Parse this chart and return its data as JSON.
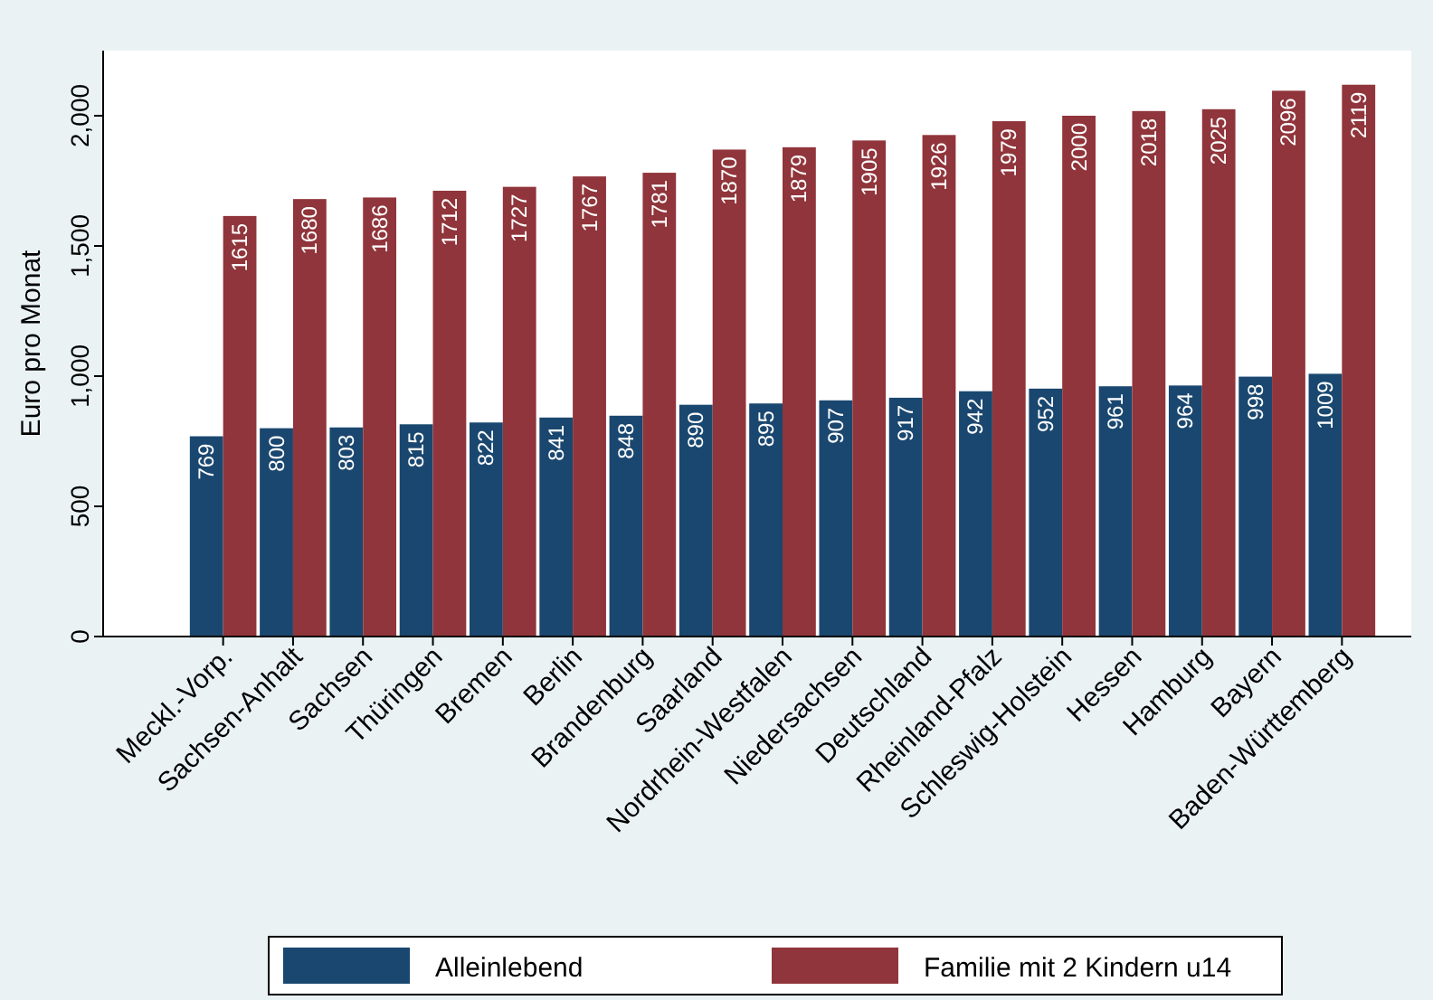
{
  "chart_data": {
    "type": "bar",
    "ylabel": "Euro pro Monat",
    "categories": [
      "Meckl.-Vorp.",
      "Sachsen-Anhalt",
      "Sachsen",
      "Thüringen",
      "Bremen",
      "Berlin",
      "Brandenburg",
      "Saarland",
      "Nordrhein-Westfalen",
      "Niedersachsen",
      "Deutschland",
      "Rheinland-Pfalz",
      "Schleswig-Holstein",
      "Hessen",
      "Hamburg",
      "Bayern",
      "Baden-Württemberg"
    ],
    "series": [
      {
        "name": "Alleinlebend",
        "color": "#1a476f",
        "values": [
          769,
          800,
          803,
          815,
          822,
          841,
          848,
          890,
          895,
          907,
          917,
          942,
          952,
          961,
          964,
          998,
          1009
        ]
      },
      {
        "name": "Familie mit 2 Kindern u14",
        "color": "#90353b",
        "values": [
          1615,
          1680,
          1686,
          1712,
          1727,
          1767,
          1781,
          1870,
          1879,
          1905,
          1926,
          1979,
          2000,
          2018,
          2025,
          2096,
          2119
        ]
      }
    ],
    "ylim": [
      0,
      2250
    ],
    "yticks": [
      0,
      500,
      {
        "value": 1000,
        "label": "1,000"
      },
      {
        "value": 1500,
        "label": "1,500"
      },
      {
        "value": 2000,
        "label": "2,000"
      }
    ],
    "data_labels": true,
    "grid": false,
    "legend": "bottom"
  }
}
